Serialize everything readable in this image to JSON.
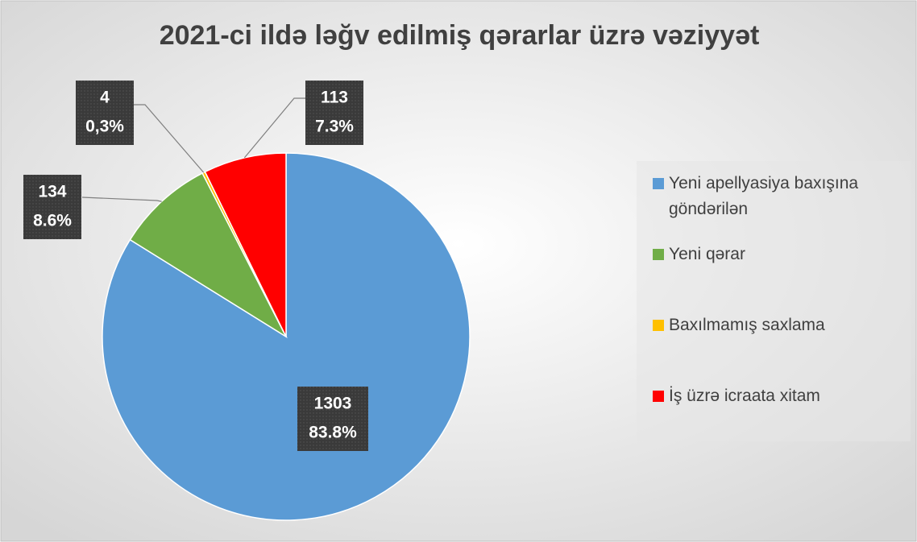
{
  "chart_data": {
    "type": "pie",
    "title": "2021-ci ildə ləğv edilmiş qərarlar üzrə vəziyyət",
    "categories": [
      "Yeni apellyasiya baxışına göndərilən",
      "Yeni qərar",
      "Baxılmamış saxlama",
      "İş üzrə icraata xitam"
    ],
    "values": [
      1303,
      134,
      4,
      113
    ],
    "percentage_labels": [
      "83.8%",
      "8.6%",
      "0,3%",
      "7.3%"
    ],
    "colors": [
      "#5b9bd5",
      "#70ad47",
      "#ffc000",
      "#ff0000"
    ],
    "legend": "right"
  }
}
